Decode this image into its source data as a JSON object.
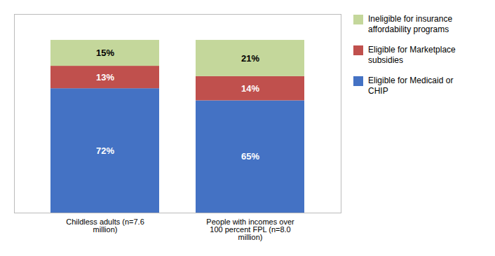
{
  "chart_data": {
    "type": "bar",
    "stacked": true,
    "categories": [
      "Childless adults (n=7.6\nmillion)",
      "People with incomes over\n100 percent FPL (n=8.0\nmillion)"
    ],
    "series": [
      {
        "name": "Eligible for Medicaid or\nCHIP",
        "color": "#4472C4",
        "values": [
          72,
          65
        ],
        "value_labels": [
          "72%",
          "65%"
        ]
      },
      {
        "name": "Eligible for Marketplace\nsubsidies",
        "color": "#C0504D",
        "values": [
          13,
          14
        ],
        "value_labels": [
          "13%",
          "14%"
        ]
      },
      {
        "name": "Ineligible for insurance\naffordability programs",
        "color": "#C4D79B",
        "values": [
          15,
          21
        ],
        "value_labels": [
          "15%",
          "21%"
        ]
      }
    ],
    "ylim": [
      0,
      115
    ],
    "tick_labels": "x",
    "data_labels": true,
    "legend": "right"
  }
}
